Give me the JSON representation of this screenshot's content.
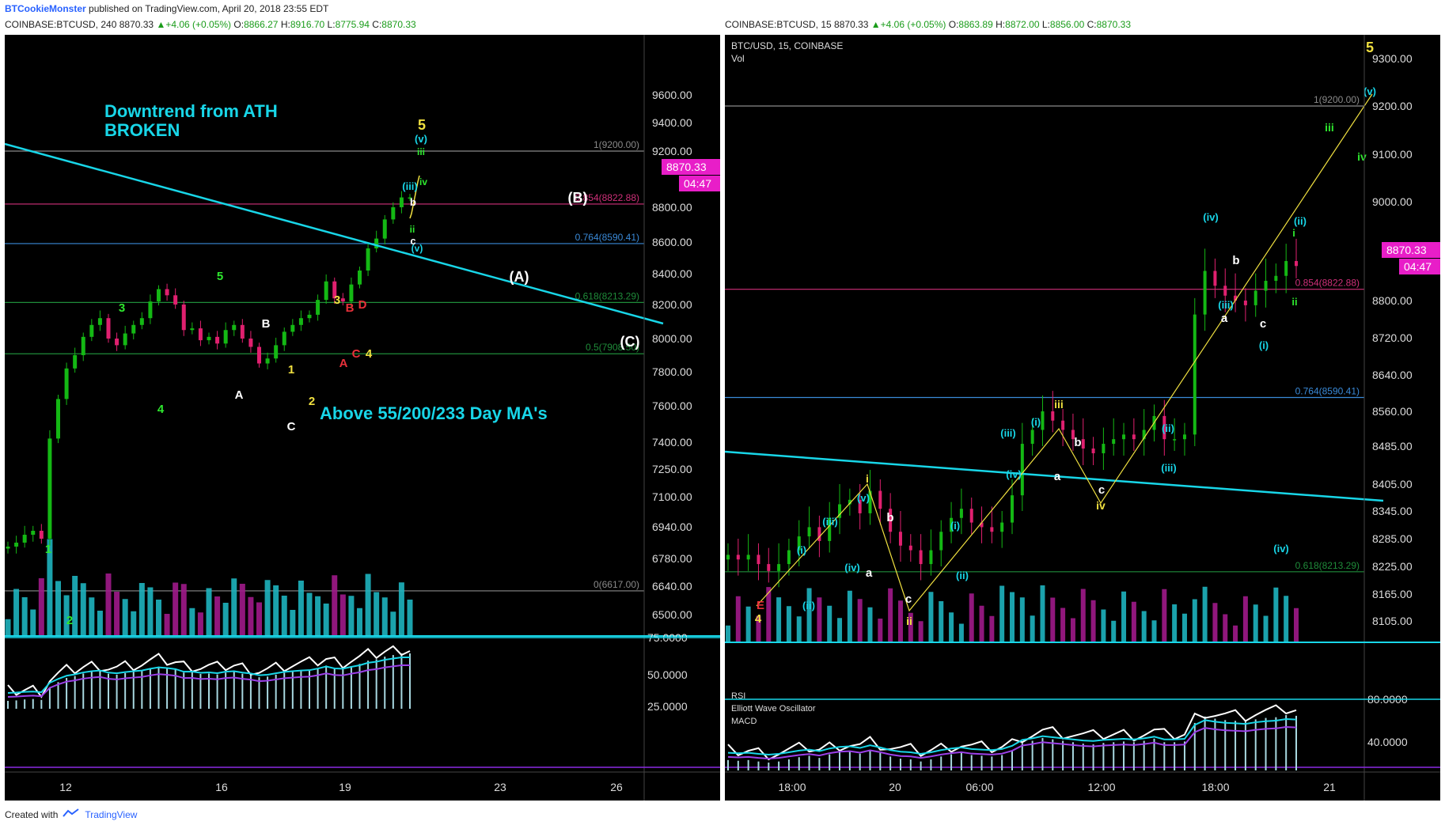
{
  "header": {
    "author": "BTCookieMonster",
    "published": "published on TradingView.com, April 20, 2018 23:55 EDT"
  },
  "left_quote": {
    "symbol": "COINBASE:BTCUSD, 240",
    "last": "8870.33",
    "change": "▲+4.06 (+0.05%)",
    "o": "8866.27",
    "h": "8916.70",
    "l": "8775.94",
    "c": "8870.33"
  },
  "right_quote": {
    "symbol": "COINBASE:BTCUSD, 15",
    "last": "8870.33",
    "change": "▲+4.06 (+0.05%)",
    "o": "8863.89",
    "h": "8872.00",
    "l": "8856.00",
    "c": "8870.33"
  },
  "footer": {
    "created": "Created with",
    "brand": "TradingView"
  },
  "colors": {
    "bull": "#14b814",
    "bear": "#e0206f",
    "trend": "#18d6e8",
    "yellow": "#f0e040",
    "fib_854": "#d0307a",
    "fib_764": "#3a8ad8",
    "fib_618": "#1f8c3a",
    "fib_1": "#7a7a7a"
  },
  "chart_data": [
    {
      "type": "line",
      "panel": "left",
      "timeframe": "240",
      "x_ticks": [
        "12",
        "16",
        "19",
        "23",
        "26"
      ],
      "y_ticks": [
        "9600.00",
        "9400.00",
        "9200.00",
        "8800.00",
        "8600.00",
        "8400.00",
        "8200.00",
        "8000.00",
        "7800.00",
        "7600.00",
        "7400.00",
        "7250.00",
        "7100.00",
        "6940.00",
        "6780.00",
        "6640.00",
        "6500.00"
      ],
      "price_badge": "8870.33",
      "countdown": "04:47",
      "fib_levels": [
        {
          "label": "1(9200.00)",
          "value": 9200
        },
        {
          "label": "0.854(8822.88)",
          "value": 8822.88
        },
        {
          "label": "0.764(8590.41)",
          "value": 8590.41
        },
        {
          "label": "0.618(8213.29)",
          "value": 8213.29
        },
        {
          "label": "0.5(7908.50)",
          "value": 7908.5
        },
        {
          "label": "0(6617.00)",
          "value": 6617
        }
      ],
      "close_path": [
        6840,
        6860,
        6900,
        6920,
        6880,
        7420,
        7640,
        7820,
        7900,
        8010,
        8080,
        8120,
        8000,
        7960,
        8030,
        8080,
        8120,
        8220,
        8300,
        8260,
        8200,
        8050,
        8060,
        7990,
        8010,
        7970,
        8050,
        8080,
        8000,
        7950,
        7850,
        7880,
        7960,
        8040,
        8080,
        8120,
        8140,
        8230,
        8350,
        8240,
        8220,
        8330,
        8420,
        8560,
        8620,
        8730,
        8800,
        8870,
        8870
      ],
      "wave_labels": [
        {
          "text": "1",
          "color": "green"
        },
        {
          "text": "2",
          "color": "green"
        },
        {
          "text": "3",
          "color": "green"
        },
        {
          "text": "4",
          "color": "green"
        },
        {
          "text": "5",
          "color": "green"
        },
        {
          "text": "A",
          "color": "white"
        },
        {
          "text": "B",
          "color": "white"
        },
        {
          "text": "C",
          "color": "white"
        },
        {
          "text": "1",
          "color": "yellow"
        },
        {
          "text": "2",
          "color": "yellow"
        },
        {
          "text": "3",
          "color": "yellow"
        },
        {
          "text": "4",
          "color": "yellow"
        },
        {
          "text": "5",
          "color": "yellow"
        },
        {
          "text": "A",
          "color": "red"
        },
        {
          "text": "B",
          "color": "red"
        },
        {
          "text": "C",
          "color": "red"
        },
        {
          "text": "D",
          "color": "red"
        },
        {
          "text": "(A)",
          "color": "white"
        },
        {
          "text": "(B)",
          "color": "white"
        },
        {
          "text": "(C)",
          "color": "white"
        },
        {
          "text": "(iii)",
          "color": "cyan"
        },
        {
          "text": "(v)",
          "color": "cyan"
        },
        {
          "text": "iii",
          "color": "green"
        },
        {
          "text": "iv",
          "color": "green"
        },
        {
          "text": "b",
          "color": "white"
        },
        {
          "text": "c",
          "color": "white"
        },
        {
          "text": "ii",
          "color": "green"
        },
        {
          "text": "(v)",
          "color": "cyan"
        }
      ],
      "annotations": {
        "downtrend": [
          "Downtrend from ATH",
          "BROKEN"
        ],
        "ma_note": "Above 55/200/233 Day MA's"
      },
      "osc_ticks": [
        "75.0000",
        "50.0000",
        "25.0000"
      ]
    },
    {
      "type": "line",
      "panel": "right",
      "timeframe": "15",
      "title": "BTC/USD, 15, COINBASE",
      "subtitle": "Vol",
      "x_ticks": [
        "18:00",
        "20",
        "06:00",
        "12:00",
        "18:00",
        "21"
      ],
      "y_ticks": [
        "9300.00",
        "9200.00",
        "9100.00",
        "9000.00",
        "8800.00",
        "8720.00",
        "8640.00",
        "8560.00",
        "8485.00",
        "8405.00",
        "8345.00",
        "8285.00",
        "8225.00",
        "8165.00",
        "8105.00"
      ],
      "price_badge": "8870.33",
      "countdown": "04:47",
      "fib_levels": [
        {
          "label": "1(9200.00)",
          "value": 9200
        },
        {
          "label": "0.854(8822.88)",
          "value": 8822.88
        },
        {
          "label": "0.764(8590.41)",
          "value": 8590.41
        },
        {
          "label": "0.618(8213.29)",
          "value": 8213.29
        }
      ],
      "close_path": [
        8250,
        8240,
        8250,
        8230,
        8215,
        8230,
        8260,
        8290,
        8310,
        8280,
        8330,
        8360,
        8370,
        8340,
        8390,
        8350,
        8300,
        8270,
        8260,
        8230,
        8260,
        8300,
        8330,
        8350,
        8320,
        8310,
        8300,
        8320,
        8380,
        8490,
        8520,
        8560,
        8540,
        8520,
        8500,
        8480,
        8470,
        8490,
        8500,
        8510,
        8500,
        8520,
        8550,
        8500,
        8500,
        8510,
        8770,
        8860,
        8830,
        8810,
        8800,
        8790,
        8820,
        8840,
        8850,
        8880,
        8870
      ],
      "wave_labels": [
        {
          "text": "E",
          "color": "red"
        },
        {
          "text": "4",
          "color": "yellow"
        },
        {
          "text": "5",
          "color": "yellow"
        },
        {
          "text": "i",
          "color": "yellow"
        },
        {
          "text": "ii",
          "color": "yellow"
        },
        {
          "text": "iii",
          "color": "yellow"
        },
        {
          "text": "iv",
          "color": "yellow"
        },
        {
          "text": "(i)",
          "color": "cyan"
        },
        {
          "text": "(ii)",
          "color": "cyan"
        },
        {
          "text": "(iii)",
          "color": "cyan"
        },
        {
          "text": "(iv)",
          "color": "cyan"
        },
        {
          "text": "(v)",
          "color": "cyan"
        },
        {
          "text": "(i)",
          "color": "cyan"
        },
        {
          "text": "(ii)",
          "color": "cyan"
        },
        {
          "text": "(iii)",
          "color": "cyan"
        },
        {
          "text": "(iv)",
          "color": "cyan"
        },
        {
          "text": "(i)",
          "color": "cyan"
        },
        {
          "text": "(ii)",
          "color": "cyan"
        },
        {
          "text": "(iii)",
          "color": "cyan"
        },
        {
          "text": "(iv)",
          "color": "cyan"
        },
        {
          "text": "(i)",
          "color": "cyan"
        },
        {
          "text": "(ii)",
          "color": "cyan"
        },
        {
          "text": "(iii)",
          "color": "cyan"
        },
        {
          "text": "(iv)",
          "color": "cyan"
        },
        {
          "text": "a",
          "color": "white"
        },
        {
          "text": "b",
          "color": "white"
        },
        {
          "text": "c",
          "color": "white"
        },
        {
          "text": "a",
          "color": "white"
        },
        {
          "text": "b",
          "color": "white"
        },
        {
          "text": "c",
          "color": "white"
        },
        {
          "text": "a",
          "color": "white"
        },
        {
          "text": "b",
          "color": "white"
        },
        {
          "text": "c",
          "color": "white"
        },
        {
          "text": "i",
          "color": "green"
        },
        {
          "text": "ii",
          "color": "green"
        },
        {
          "text": "iii",
          "color": "green"
        },
        {
          "text": "iv",
          "color": "green"
        },
        {
          "text": "(v)",
          "color": "cyan"
        }
      ],
      "legend": [
        "RSI",
        "Elliott Wave Oscillator",
        "MACD"
      ],
      "osc_ticks": [
        "80.0000",
        "40.0000"
      ]
    }
  ]
}
